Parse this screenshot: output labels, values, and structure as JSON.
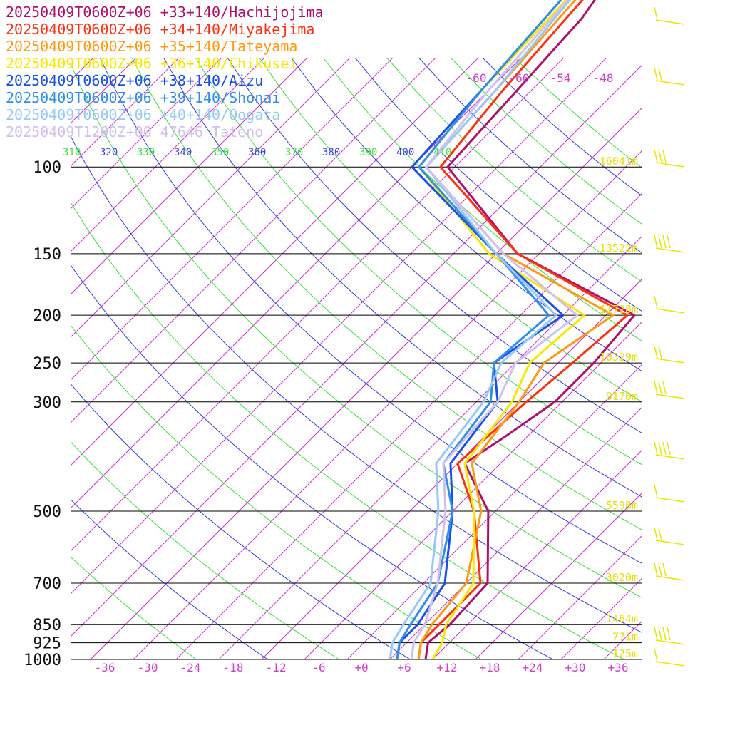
{
  "chart_data": {
    "type": "line",
    "title": "",
    "xlabel": "",
    "ylabel": "",
    "pressure_levels": [
      1000,
      925,
      850,
      700,
      500,
      300,
      250,
      200,
      150,
      100
    ],
    "pressure_labels": [
      "1000",
      "925",
      "850",
      "700",
      "500",
      "300",
      "250",
      "200",
      "150",
      "100"
    ],
    "height_labels": [
      {
        "p": 1000,
        "label": "125m"
      },
      {
        "p": 925,
        "label": "771m"
      },
      {
        "p": 850,
        "label": "1464m"
      },
      {
        "p": 700,
        "label": "3020m"
      },
      {
        "p": 500,
        "label": "5598m"
      },
      {
        "p": 300,
        "label": "9170m"
      },
      {
        "p": 250,
        "label": "10329m"
      },
      {
        "p": 200,
        "label": "11728m"
      },
      {
        "p": 150,
        "label": "13522m"
      },
      {
        "p": 100,
        "label": "16041m"
      }
    ],
    "x_ticks": [
      -36,
      -30,
      -24,
      -18,
      -12,
      -6,
      0,
      6,
      12,
      18,
      24,
      30,
      36
    ],
    "x_tick_labels": [
      "-36",
      "-30",
      "-24",
      "-18",
      "-12",
      "-6",
      "+0",
      "+6",
      "+12",
      "+18",
      "+24",
      "+30",
      "+36"
    ],
    "upper_t_labels": [
      "-60",
      "-60",
      "-54",
      "-48"
    ],
    "theta_labels": [
      {
        "value": "310",
        "color": "#40e040"
      },
      {
        "value": "320",
        "color": "#4040e0"
      },
      {
        "value": "330",
        "color": "#40e040"
      },
      {
        "value": "340",
        "color": "#4040e0"
      },
      {
        "value": "350",
        "color": "#40e040"
      },
      {
        "value": "360",
        "color": "#4040e0"
      },
      {
        "value": "370",
        "color": "#40e040"
      },
      {
        "value": "380",
        "color": "#4040e0"
      },
      {
        "value": "390",
        "color": "#40e040"
      },
      {
        "value": "400",
        "color": "#4040e0"
      },
      {
        "value": "410",
        "color": "#40e040"
      }
    ],
    "legend_position": "top-left",
    "grid": true,
    "series": [
      {
        "name": "20250409T0600Z+06 +33+140/Hachijojima",
        "color": "#b0106a",
        "points": [
          [
            1000,
            9
          ],
          [
            925,
            7
          ],
          [
            850,
            7.5
          ],
          [
            700,
            7
          ],
          [
            500,
            -3
          ],
          [
            400,
            -13
          ],
          [
            350,
            -11
          ],
          [
            300,
            -9
          ],
          [
            250,
            -9
          ],
          [
            200,
            -10
          ],
          [
            150,
            -35
          ],
          [
            100,
            -57
          ],
          [
            70,
            -58
          ],
          [
            50,
            -59
          ],
          [
            40,
            -61
          ]
        ]
      },
      {
        "name": "20250409T0600Z+06 +34+140/Miyakejima",
        "color": "#ff3010",
        "points": [
          [
            1000,
            8
          ],
          [
            925,
            6
          ],
          [
            850,
            6
          ],
          [
            700,
            6
          ],
          [
            500,
            -5
          ],
          [
            400,
            -14
          ],
          [
            300,
            -13
          ],
          [
            250,
            -12
          ],
          [
            200,
            -11
          ],
          [
            150,
            -35
          ],
          [
            100,
            -58
          ],
          [
            70,
            -60
          ],
          [
            40,
            -62
          ]
        ]
      },
      {
        "name": "20250409T0600Z+06 +35+140/Tateyama",
        "color": "#ff9a10",
        "points": [
          [
            1000,
            8
          ],
          [
            925,
            6
          ],
          [
            850,
            5
          ],
          [
            700,
            4
          ],
          [
            500,
            -4
          ],
          [
            400,
            -12
          ],
          [
            300,
            -14
          ],
          [
            250,
            -16
          ],
          [
            200,
            -13
          ],
          [
            150,
            -37
          ],
          [
            100,
            -60
          ],
          [
            70,
            -61
          ],
          [
            40,
            -63
          ]
        ]
      },
      {
        "name": "20250409T0600Z+06 +36+140/Chikusei",
        "color": "#f8e800",
        "points": [
          [
            1000,
            10
          ],
          [
            925,
            9
          ],
          [
            850,
            7
          ],
          [
            700,
            5
          ],
          [
            500,
            -5
          ],
          [
            400,
            -13
          ],
          [
            300,
            -15
          ],
          [
            250,
            -18
          ],
          [
            200,
            -17
          ],
          [
            150,
            -39
          ],
          [
            100,
            -61
          ],
          [
            70,
            -63
          ],
          [
            40,
            -64
          ]
        ]
      },
      {
        "name": "20250409T0600Z+06 +38+140/Aizu",
        "color": "#1850e8",
        "points": [
          [
            1000,
            5
          ],
          [
            925,
            3
          ],
          [
            850,
            3
          ],
          [
            700,
            1
          ],
          [
            500,
            -8
          ],
          [
            400,
            -15
          ],
          [
            300,
            -17
          ],
          [
            250,
            -23
          ],
          [
            200,
            -20
          ],
          [
            150,
            -38
          ],
          [
            100,
            -62
          ],
          [
            70,
            -63
          ],
          [
            40,
            -65
          ]
        ]
      },
      {
        "name": "20250409T0600Z+06 +39+140/Shonai",
        "color": "#3090e8",
        "points": [
          [
            1000,
            5
          ],
          [
            925,
            3
          ],
          [
            850,
            2
          ],
          [
            700,
            0
          ],
          [
            500,
            -8
          ],
          [
            400,
            -16
          ],
          [
            300,
            -18
          ],
          [
            250,
            -23
          ],
          [
            200,
            -22
          ],
          [
            150,
            -38
          ],
          [
            100,
            -61
          ],
          [
            70,
            -63
          ],
          [
            40,
            -65
          ]
        ]
      },
      {
        "name": "20250409T0600Z+06 +40+140/Oogata",
        "color": "#98c8f8",
        "points": [
          [
            1000,
            4
          ],
          [
            925,
            2
          ],
          [
            850,
            1
          ],
          [
            700,
            -1
          ],
          [
            500,
            -10
          ],
          [
            400,
            -17
          ],
          [
            300,
            -19
          ],
          [
            250,
            -22
          ],
          [
            200,
            -21
          ],
          [
            150,
            -38
          ],
          [
            100,
            -60
          ],
          [
            70,
            -61
          ],
          [
            40,
            -64
          ]
        ]
      },
      {
        "name": "20250409T1200Z+00 47646_Tateno",
        "color": "#d0c0f0",
        "points": [
          [
            1000,
            7
          ],
          [
            925,
            5
          ],
          [
            850,
            4
          ],
          [
            700,
            0
          ],
          [
            500,
            -9
          ],
          [
            400,
            -16
          ],
          [
            300,
            -17
          ],
          [
            250,
            -20
          ],
          [
            200,
            -18
          ],
          [
            150,
            -37
          ],
          [
            100,
            -60
          ],
          [
            70,
            -62
          ],
          [
            40,
            -64
          ]
        ]
      }
    ]
  }
}
